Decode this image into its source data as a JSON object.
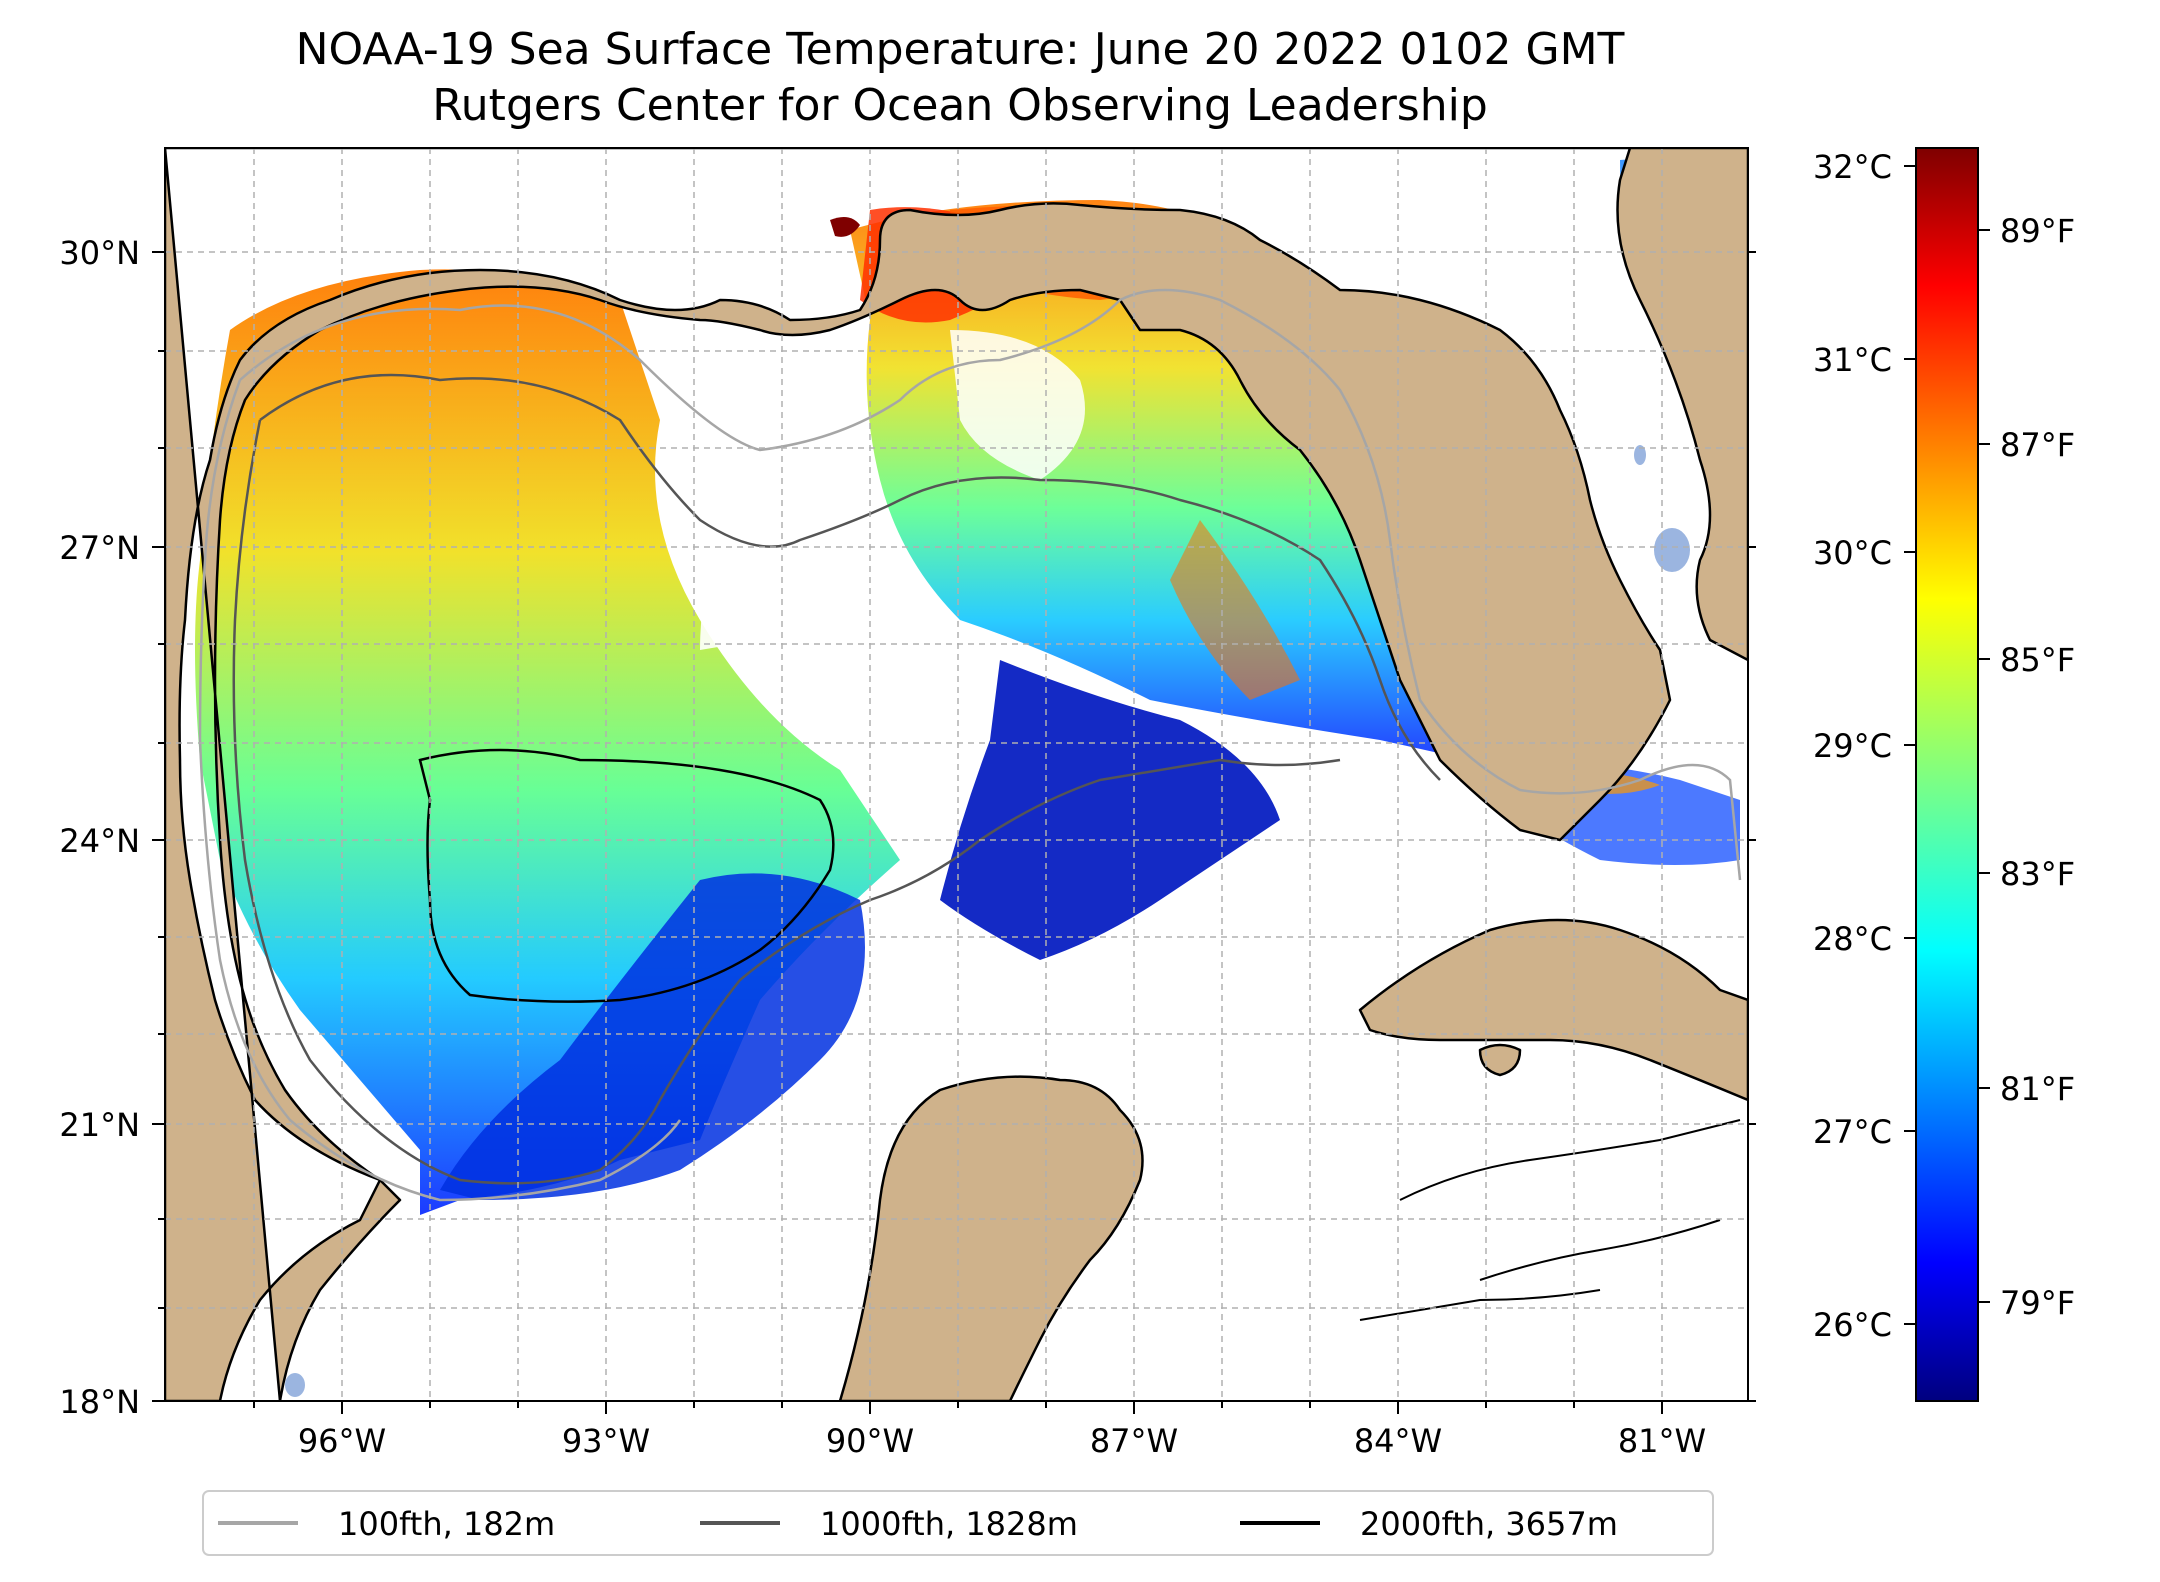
{
  "title": "NOAA-19 Sea Surface Temperature: June 20 2022 0102 GMT",
  "subtitle": "Rutgers Center for Ocean Observing Leadership",
  "map": {
    "lat_ticks": [
      "30°N",
      "27°N",
      "24°N",
      "21°N",
      "18°N"
    ],
    "lon_ticks": [
      "96°W",
      "93°W",
      "90°W",
      "87°W",
      "84°W",
      "81°W"
    ],
    "land_color": "#cfb28b",
    "lake_color": "#9bb5e0"
  },
  "colorbar": {
    "celsius_ticks": [
      "32°C",
      "31°C",
      "30°C",
      "29°C",
      "28°C",
      "27°C",
      "26°C"
    ],
    "fahrenheit_ticks": [
      "89°F",
      "87°F",
      "85°F",
      "83°F",
      "81°F",
      "79°F"
    ],
    "colormap": "jet",
    "range_c": [
      25.6,
      32.1
    ]
  },
  "legend": {
    "items": [
      {
        "label": "100fth, 182m",
        "color": "#a6a6a6"
      },
      {
        "label": "1000fth, 1828m",
        "color": "#555555"
      },
      {
        "label": "2000fth, 3657m",
        "color": "#000000"
      }
    ]
  }
}
